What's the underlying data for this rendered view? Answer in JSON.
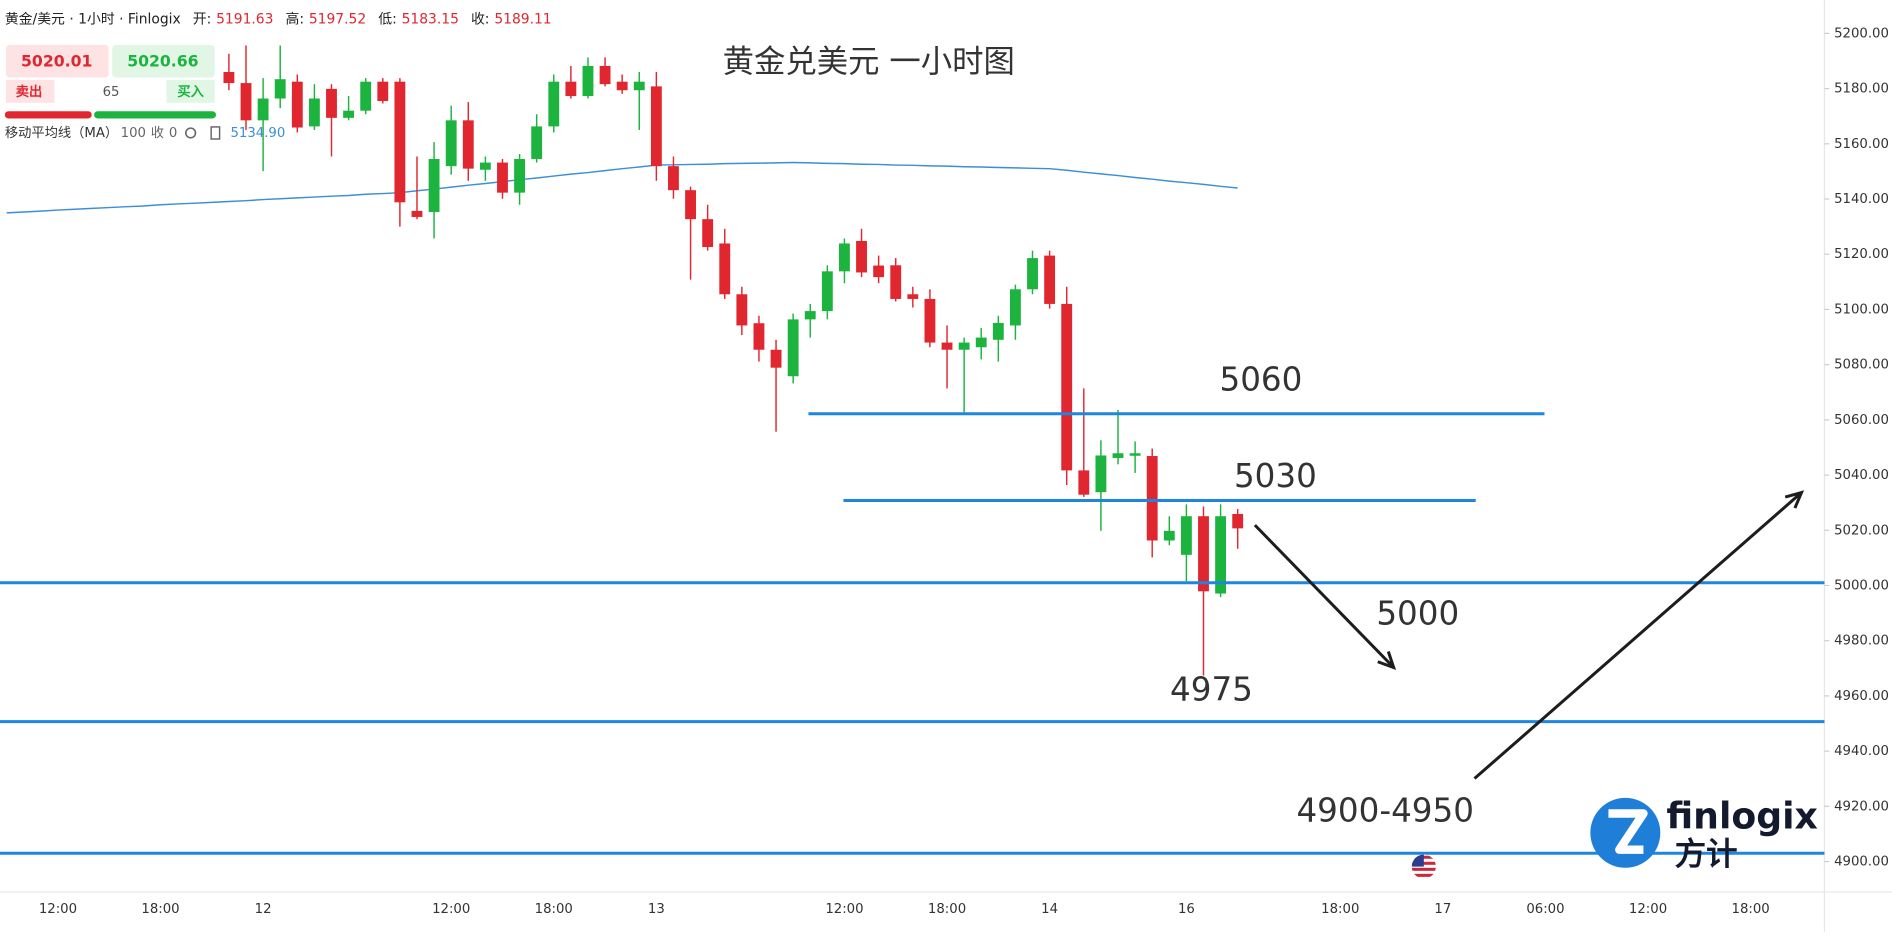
{
  "chart_data": {
    "type": "candlestick",
    "title": "黄金兑美元 一小时图",
    "header": {
      "symbol": "黄金/美元 · 1小时 · Finlogix",
      "ohlc": [
        {
          "name": "开:",
          "value": 5191.63
        },
        {
          "name": "高:",
          "value": 5197.52
        },
        {
          "name": "低:",
          "value": 5183.15
        },
        {
          "name": "收:",
          "value": 5189.11
        }
      ]
    },
    "trade_panel": {
      "sell_price": 5020.01,
      "buy_price": 5020.66,
      "sell_label": "卖出",
      "spread": 65,
      "buy_label": "买入"
    },
    "ma_legend": {
      "name": "移动平均线（MA）",
      "period": 100,
      "source": "收",
      "offset": 0,
      "value": {
        "value": 5134.9,
        "label": "5134.90"
      }
    },
    "categories": [
      null,
      null,
      null,
      "12:00",
      null,
      null,
      null,
      null,
      null,
      "18:00",
      null,
      null,
      null,
      null,
      null,
      "12",
      null,
      null,
      null,
      null,
      null,
      null,
      null,
      null,
      null,
      null,
      "12:00",
      null,
      null,
      null,
      null,
      null,
      "18:00",
      null,
      null,
      null,
      null,
      null,
      "13",
      null,
      null,
      null,
      null,
      null,
      null,
      null,
      null,
      null,
      null,
      "12:00",
      null,
      null,
      null,
      null,
      null,
      "18:00",
      null,
      null,
      null,
      null,
      null,
      "14",
      null,
      null,
      null,
      null,
      null,
      null,
      null,
      "16",
      null,
      null,
      null,
      null,
      null,
      null,
      null,
      null,
      "18:00",
      null,
      null,
      null,
      null,
      null,
      "17",
      null,
      null,
      null,
      null,
      null,
      "06:00",
      null,
      null,
      null,
      null,
      null,
      "12:00",
      null,
      null,
      null,
      null,
      null,
      "18:00",
      null,
      null,
      null,
      null
    ],
    "open": [
      null,
      null,
      null,
      null,
      null,
      null,
      null,
      null,
      null,
      null,
      null,
      null,
      null,
      5186,
      5182,
      5168.5,
      5176.4,
      5182.5,
      5166.3,
      5179.9,
      5169.4,
      5172,
      5182.5,
      5182.5,
      5135.7,
      5135.3,
      5151.9,
      5168.5,
      5150.6,
      5153.2,
      5142.3,
      5154.5,
      5166.3,
      5182.5,
      5177.3,
      5188.2,
      5182.5,
      5179.4,
      5180.8,
      5151.9,
      5143.2,
      5132.7,
      5123.9,
      5105.5,
      5095,
      5085.4,
      5075.8,
      5096.4,
      5099.4,
      5113.8,
      5124.8,
      5115.9,
      5116,
      5105.5,
      5103.8,
      5088,
      5085.4,
      5086.3,
      5089,
      5094.2,
      5107.3,
      5119.5,
      5102,
      5041.7,
      5033.8,
      5046.2,
      5047,
      5046.9,
      5016.3,
      5011.1,
      5025.1,
      4997.1,
      5025.9,
      null,
      null,
      null,
      null,
      null,
      null,
      null,
      null,
      null,
      null,
      null,
      null,
      null,
      null,
      null,
      null,
      null,
      null,
      null,
      null,
      null,
      null,
      null,
      null,
      null,
      null,
      null,
      null,
      null,
      null,
      null,
      null,
      null,
      null
    ],
    "high": [
      null,
      null,
      null,
      null,
      null,
      null,
      null,
      null,
      null,
      null,
      null,
      null,
      null,
      5192.6,
      5195.6,
      5183.8,
      5195.6,
      5185.1,
      5181.6,
      5181.6,
      5177.3,
      5183.8,
      5183.8,
      5183.8,
      5155.4,
      5160.6,
      5173.8,
      5175.1,
      5155.4,
      5154.5,
      5156.3,
      5170.7,
      5185.1,
      5188.2,
      5191.3,
      5191.3,
      5185.1,
      5186,
      5186,
      5155.4,
      5144.5,
      5137.9,
      5129.2,
      5108.2,
      5097.7,
      5089,
      5098.5,
      5102,
      5116,
      5125.7,
      5129.2,
      5119.5,
      5118.6,
      5108.2,
      5107.3,
      5094.2,
      5089.8,
      5093.3,
      5097.7,
      5109,
      5121.3,
      5121.3,
      5108.2,
      5071.4,
      5052.6,
      5063.6,
      5052.2,
      5049.6,
      5025.1,
      5029.4,
      5028.6,
      5029.4,
      5027.7,
      null,
      null,
      null,
      null,
      null,
      null,
      null,
      null,
      null,
      null,
      null,
      null,
      null,
      null,
      null,
      null,
      null,
      null,
      null,
      null,
      null,
      null,
      null,
      null,
      null,
      null,
      null,
      null,
      null,
      null,
      null,
      null,
      null,
      null
    ],
    "low": [
      null,
      null,
      null,
      null,
      null,
      null,
      null,
      null,
      null,
      null,
      null,
      null,
      null,
      5179.4,
      5165,
      5150.1,
      5172.9,
      5164.1,
      5165,
      5155.4,
      5168.5,
      5170.7,
      5174.6,
      5130,
      5132.7,
      5125.7,
      5148.8,
      5146.6,
      5146.6,
      5140.1,
      5137.9,
      5153.2,
      5164.1,
      5176.4,
      5176.4,
      5180.8,
      5178.1,
      5165,
      5146.6,
      5140.1,
      5110.8,
      5121.3,
      5103.8,
      5090.7,
      5081.1,
      5055.7,
      5073.2,
      5089.8,
      5096.4,
      5109.5,
      5111.7,
      5109.5,
      5102.9,
      5100.7,
      5086.3,
      5071.4,
      5062.7,
      5081.9,
      5081.1,
      5089,
      5105.5,
      5100.3,
      5036.4,
      5032.1,
      5019.8,
      5043.9,
      5040.8,
      5010.2,
      5014.6,
      5001.5,
      4967.4,
      4995.8,
      5013.3,
      null,
      null,
      null,
      null,
      null,
      null,
      null,
      null,
      null,
      null,
      null,
      null,
      null,
      null,
      null,
      null,
      null,
      null,
      null,
      null,
      null,
      null,
      null,
      null,
      null,
      null,
      null,
      null,
      null,
      null,
      null,
      null,
      null,
      null
    ],
    "close": [
      null,
      null,
      null,
      null,
      null,
      null,
      null,
      null,
      null,
      null,
      null,
      null,
      null,
      5182,
      5168.5,
      5176.4,
      5183.4,
      5165.9,
      5176.4,
      5169.4,
      5172,
      5182.5,
      5175.5,
      5138.8,
      5133.5,
      5154.5,
      5168.5,
      5151,
      5153.2,
      5142.3,
      5154.5,
      5166.3,
      5182.5,
      5177.3,
      5188.2,
      5181.6,
      5179.4,
      5182.5,
      5151.9,
      5143.2,
      5132.7,
      5122.6,
      5105.5,
      5094.2,
      5085.4,
      5078.9,
      5096.4,
      5099.4,
      5113.8,
      5123.9,
      5113.4,
      5111.7,
      5103.8,
      5103.8,
      5088,
      5085.4,
      5088,
      5089.8,
      5095.1,
      5107.3,
      5118.6,
      5102,
      5041.7,
      5032.9,
      5047.1,
      5047.9,
      5047.9,
      5016.3,
      5019.8,
      5025.1,
      4997.9,
      5025.1,
      5020.7,
      null,
      null,
      null,
      null,
      null,
      null,
      null,
      null,
      null,
      null,
      null,
      null,
      null,
      null,
      null,
      null,
      null,
      null,
      null,
      null,
      null,
      null,
      null,
      null,
      null,
      null,
      null,
      null,
      null,
      null,
      null,
      null,
      null,
      null
    ],
    "up_color": "#1db33f",
    "down_color": "#e0272f",
    "ma": {
      "color": "#3d8ed8",
      "values": [
        5135.0,
        5135.3,
        5135.6,
        5136.0,
        5136.3,
        5136.6,
        5136.9,
        5137.2,
        5137.5,
        5137.9,
        5138.2,
        5138.5,
        5138.8,
        5139.1,
        5139.4,
        5139.8,
        5140.1,
        5140.4,
        5140.7,
        5141.0,
        5141.3,
        5141.7,
        5142.0,
        5142.3,
        5143.0,
        5143.6,
        5144.3,
        5145.0,
        5145.6,
        5146.3,
        5147.0,
        5147.6,
        5148.3,
        5149.0,
        5149.6,
        5150.3,
        5151.0,
        5151.6,
        5152.3,
        5152.4,
        5152.5,
        5152.6,
        5152.8,
        5152.9,
        5153.0,
        5153.1,
        5153.2,
        5153.1,
        5152.9,
        5152.8,
        5152.6,
        5152.5,
        5152.3,
        5152.2,
        5152.0,
        5151.9,
        5151.7,
        5151.6,
        5151.4,
        5151.3,
        5151.1,
        5151.0,
        5150.4,
        5149.7,
        5149.1,
        5148.5,
        5147.8,
        5147.2,
        5146.5,
        5145.9,
        5145.3,
        5144.6,
        5144.0,
        null,
        null,
        null,
        null,
        null,
        null,
        null,
        null,
        null,
        null,
        null,
        null,
        null,
        null,
        null,
        null,
        null,
        null,
        null,
        null,
        null,
        null,
        null,
        null,
        null,
        null,
        null,
        null,
        null,
        null,
        null,
        null,
        null,
        null
      ]
    },
    "levels": {
      "color": "#1e86e0",
      "values": [
        5062.2,
        5030.8,
        5001,
        4950.7,
        4903
      ]
    },
    "annotations": [
      "5060",
      "5030",
      "5000",
      "4975",
      "4900-4950"
    ],
    "ylim": [
      4889,
      5212
    ],
    "yticks": [
      {
        "value": 5200,
        "label": "5200.00"
      },
      {
        "value": 5180,
        "label": "5180.00"
      },
      {
        "value": 5160,
        "label": "5160.00"
      },
      {
        "value": 5140,
        "label": "5140.00"
      },
      {
        "value": 5120,
        "label": "5120.00"
      },
      {
        "value": 5100,
        "label": "5100.00"
      },
      {
        "value": 5080,
        "label": "5080.00"
      },
      {
        "value": 5060,
        "label": "5060.00"
      },
      {
        "value": 5040,
        "label": "5040.00"
      },
      {
        "value": 5020,
        "label": "5020.00"
      },
      {
        "value": 5000,
        "label": "5000.00"
      },
      {
        "value": 4980,
        "label": "4980.00"
      },
      {
        "value": 4960,
        "label": "4960.00"
      },
      {
        "value": 4940,
        "label": "4940.00"
      },
      {
        "value": 4920,
        "label": "4920.00"
      },
      {
        "value": 4900,
        "label": "4900.00"
      }
    ],
    "grid": false,
    "logo": {
      "brand": "finlogix",
      "cn": "方计"
    }
  }
}
